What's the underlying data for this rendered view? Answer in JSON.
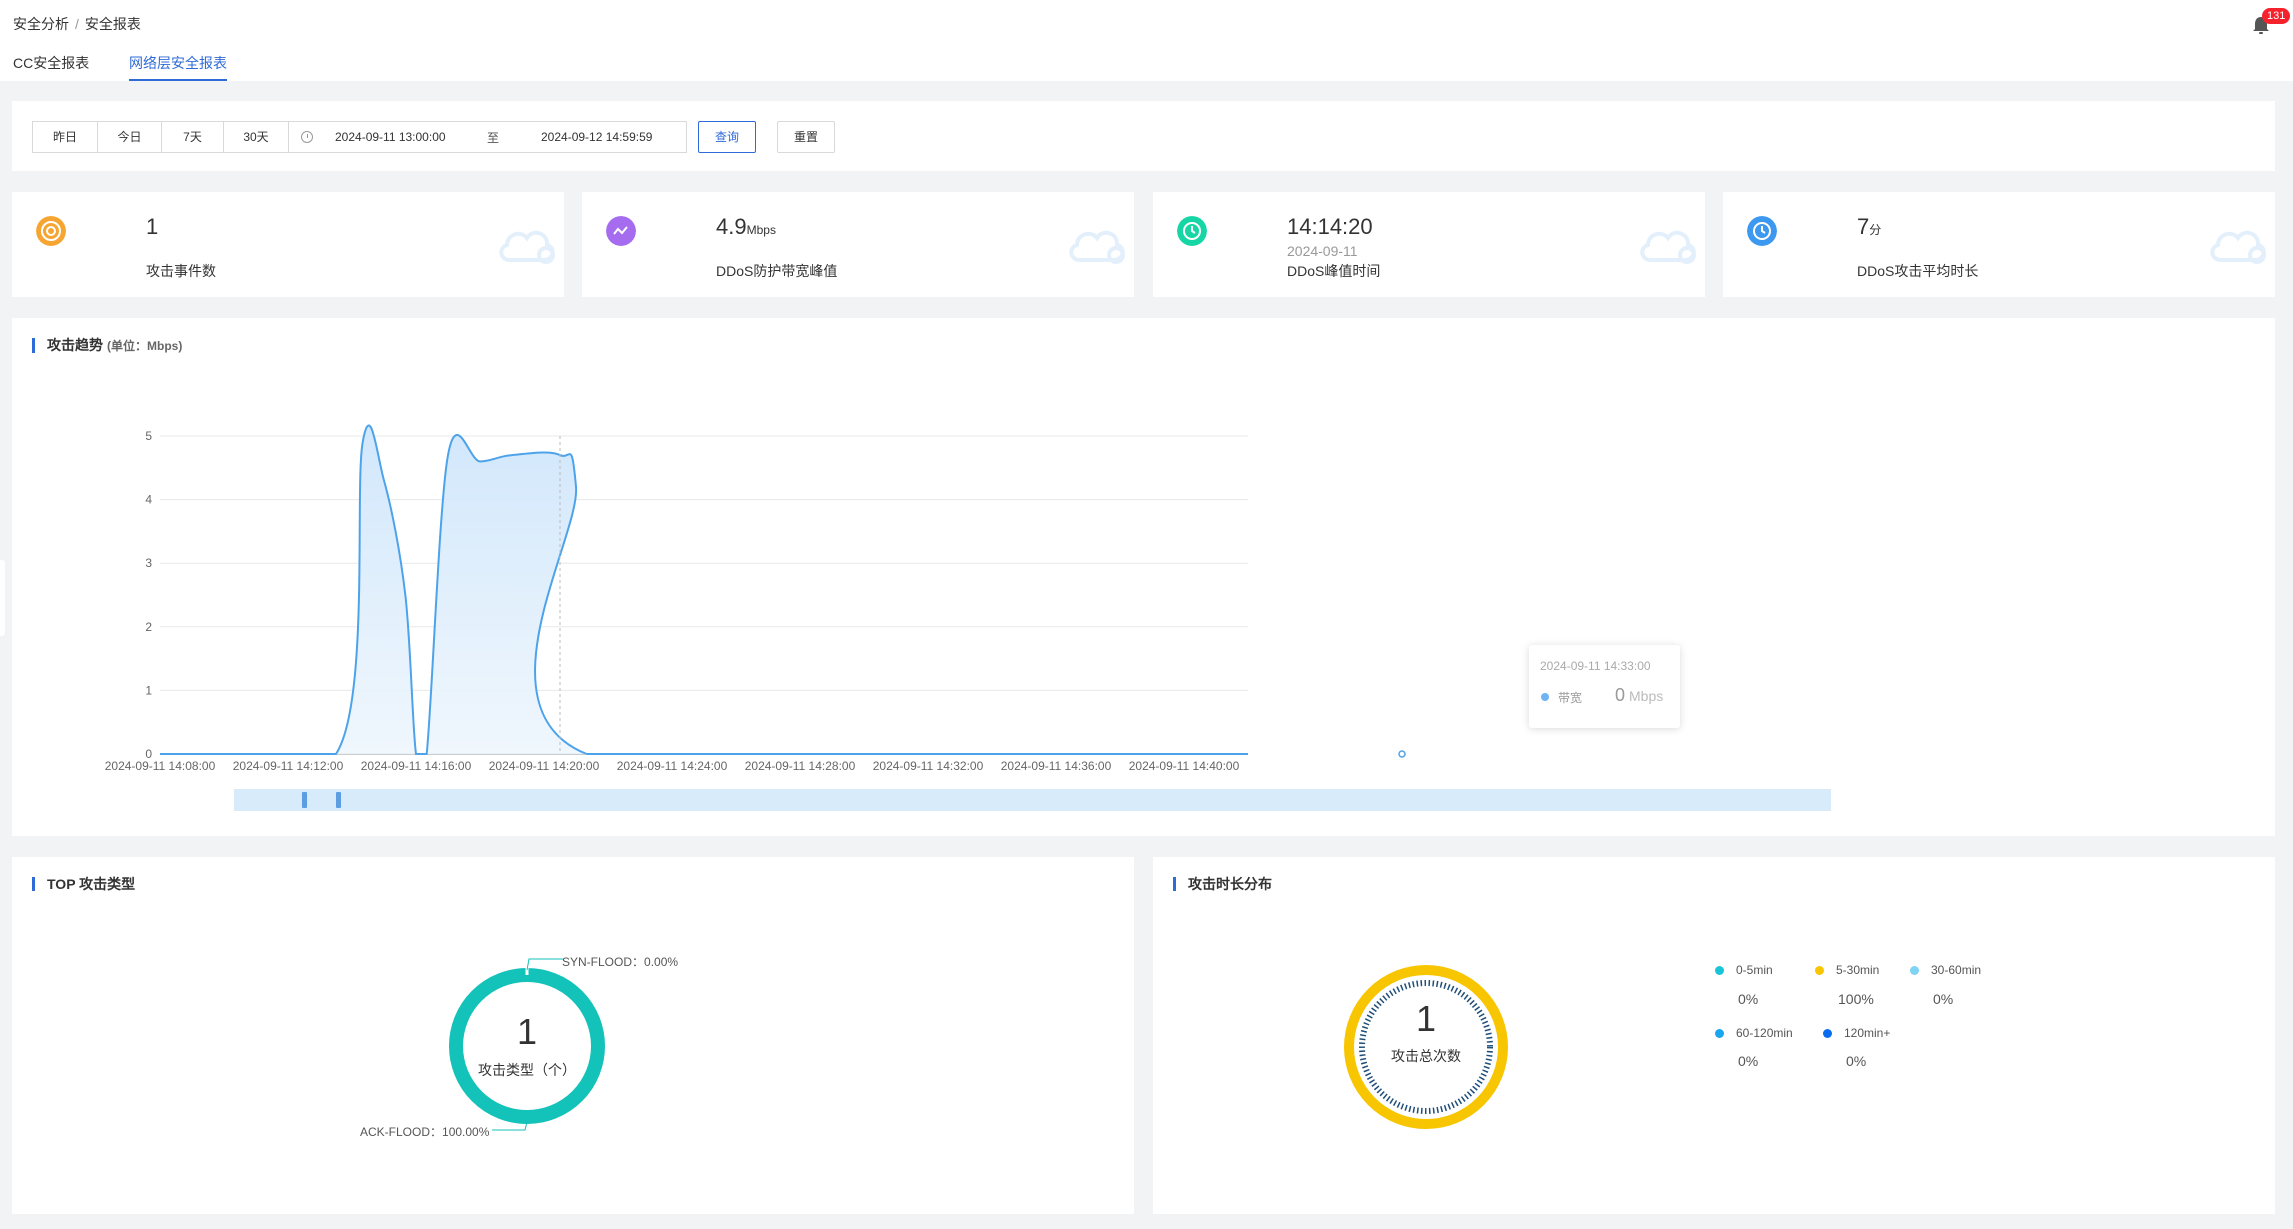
{
  "breadcrumb": {
    "parent": "安全分析",
    "separator": "/",
    "current": "安全报表"
  },
  "notifications": {
    "count": "131"
  },
  "tabs": [
    {
      "label": "CC安全报表",
      "active": false
    },
    {
      "label": "网络层安全报表",
      "active": true
    }
  ],
  "filter": {
    "quick_ranges": [
      "昨日",
      "今日",
      "7天",
      "30天"
    ],
    "start": "2024-09-11 13:00:00",
    "separator": "至",
    "end": "2024-09-12 14:59:59",
    "query_label": "查询",
    "reset_label": "重置"
  },
  "stats": [
    {
      "value": "1",
      "unit": "",
      "sub": "",
      "label": "攻击事件数",
      "icon": "target-icon",
      "color": "#f7a531"
    },
    {
      "value": "4.9",
      "unit": "Mbps",
      "sub": "",
      "label": "DDoS防护带宽峰值",
      "icon": "wave-icon",
      "color": "#a66cf0"
    },
    {
      "value": "14:14:20",
      "unit": "",
      "sub": "2024-09-11",
      "label": "DDoS峰值时间",
      "icon": "clock-icon",
      "color": "#17d6a5"
    },
    {
      "value": "7",
      "unit": "分",
      "sub": "",
      "label": "DDoS攻击平均时长",
      "icon": "clock-icon",
      "color": "#3d98f0"
    }
  ],
  "trend": {
    "title": "攻击趋势",
    "subtitle": "(单位：Mbps)",
    "tooltip": {
      "time": "2024-09-11 14:33:00",
      "series": "带宽",
      "value": "0",
      "unit": "Mbps"
    }
  },
  "chart_data": {
    "type": "area",
    "series": [
      {
        "name": "带宽",
        "color": "#4da3ea"
      }
    ],
    "x_start_minutes": 0,
    "x_ticks": [
      "2024-09-11 14:08:00",
      "2024-09-11 14:12:00",
      "2024-09-11 14:16:00",
      "2024-09-11 14:20:00",
      "2024-09-11 14:24:00",
      "2024-09-11 14:28:00",
      "2024-09-11 14:32:00",
      "2024-09-11 14:36:00",
      "2024-09-11 14:40:00"
    ],
    "y_ticks": [
      "0",
      "1",
      "2",
      "3",
      "4",
      "5"
    ],
    "ylim": [
      0,
      5
    ],
    "points": [
      [
        "14:08",
        0
      ],
      [
        "14:13:30",
        0
      ],
      [
        "14:14:20",
        4.9
      ],
      [
        "14:15:00",
        4.3
      ],
      [
        "14:15:40",
        2.5
      ],
      [
        "14:16:00",
        0
      ],
      [
        "14:16:20",
        0
      ],
      [
        "14:17:00",
        4.7
      ],
      [
        "14:18:00",
        4.6
      ],
      [
        "14:19:00",
        4.7
      ],
      [
        "14:20:30",
        4.7
      ],
      [
        "14:21:00",
        4.2
      ],
      [
        "14:21:20",
        0
      ],
      [
        "14:42",
        0
      ]
    ],
    "grid": true
  },
  "top_types": {
    "title": "TOP 攻击类型",
    "center_value": "1",
    "center_label": "攻击类型（个）",
    "slices": [
      {
        "name": "SYN-FLOOD",
        "percent": "0.00%",
        "value": 0,
        "color": "#1cc9c0"
      },
      {
        "name": "ACK-FLOOD",
        "percent": "100.00%",
        "value": 100,
        "color": "#13c2b8"
      }
    ]
  },
  "duration": {
    "title": "攻击时长分布",
    "center_value": "1",
    "center_label": "攻击总次数",
    "legend": [
      {
        "name": "0-5min",
        "percent": "0%",
        "color": "#19c3d8"
      },
      {
        "name": "5-30min",
        "percent": "100%",
        "color": "#f7c600"
      },
      {
        "name": "30-60min",
        "percent": "0%",
        "color": "#7fd3f5"
      },
      {
        "name": "60-120min",
        "percent": "0%",
        "color": "#1aa5f0"
      },
      {
        "name": "120min+",
        "percent": "0%",
        "color": "#0a6cf0"
      }
    ]
  }
}
